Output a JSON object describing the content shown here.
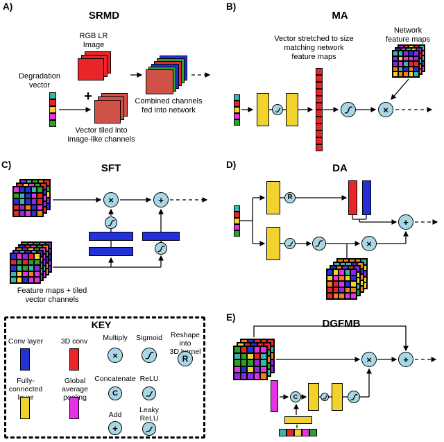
{
  "figure": {
    "panels": {
      "a": {
        "label": "A)",
        "title": "SRMD",
        "rgb_caption": "RGB LR\nImage",
        "plus": "+",
        "degradation_caption": "Degradation\nvector",
        "tiled_caption": "Vector tiled into\nimage-like channels",
        "combined_caption": "Combined channels\nfed into network"
      },
      "b": {
        "label": "B)",
        "title": "MA",
        "stretched_caption": "Vector stretched to size\nmatching network\nfeature maps",
        "feature_maps_caption": "Network\nfeature maps"
      },
      "c": {
        "label": "C)",
        "title": "SFT",
        "bottom_caption": "Feature maps + tiled\nvector channels"
      },
      "d": {
        "label": "D)",
        "title": "DA"
      },
      "e": {
        "label": "E)",
        "title": "DGFMB"
      }
    },
    "key": {
      "title": "KEY",
      "items": {
        "conv": "Conv layer",
        "conv3d": "3D conv",
        "multiply": "Multiply",
        "sigmoid": "Sigmoid",
        "reshape": "Reshape into\n3D kernel",
        "fc": "Fully-connected\nlayer",
        "gap": "Global average\npooling",
        "concat": "Concatenate",
        "relu": "ReLU",
        "add": "Add",
        "leaky": "Leaky\nReLU"
      }
    },
    "glyphs": {
      "multiply": "×",
      "concat": "C",
      "add": "+",
      "reshape": "R"
    }
  },
  "colors": {
    "red": "#e8262a",
    "blue": "#2430d8",
    "yellow": "#f2d22c",
    "magenta": "#e632e6",
    "green": "#2aa12a",
    "teal": "#35b8ab",
    "brick": "#cf5148",
    "node_fill": "#a8d8e6",
    "ink": "#000000"
  },
  "palette_grid": [
    "#e8262a",
    "#2aa12a",
    "#2430d8",
    "#f2d22c",
    "#f08018",
    "#8a2be2",
    "#35b8ab",
    "#e632e6"
  ],
  "vectors": {
    "standard": [
      "teal",
      "red",
      "yellow",
      "magenta",
      "green"
    ],
    "stretched": [
      "red",
      "red",
      "red",
      "red",
      "red",
      "red",
      "red",
      "red",
      "red",
      "red",
      "red",
      "red"
    ]
  },
  "stacks": {
    "rgb_image": [
      "red",
      "red",
      "red"
    ],
    "tiled": [
      "brick",
      "brick",
      "brick"
    ],
    "combined": [
      "blue",
      "green",
      "red",
      "blue",
      "green",
      "brick"
    ]
  }
}
